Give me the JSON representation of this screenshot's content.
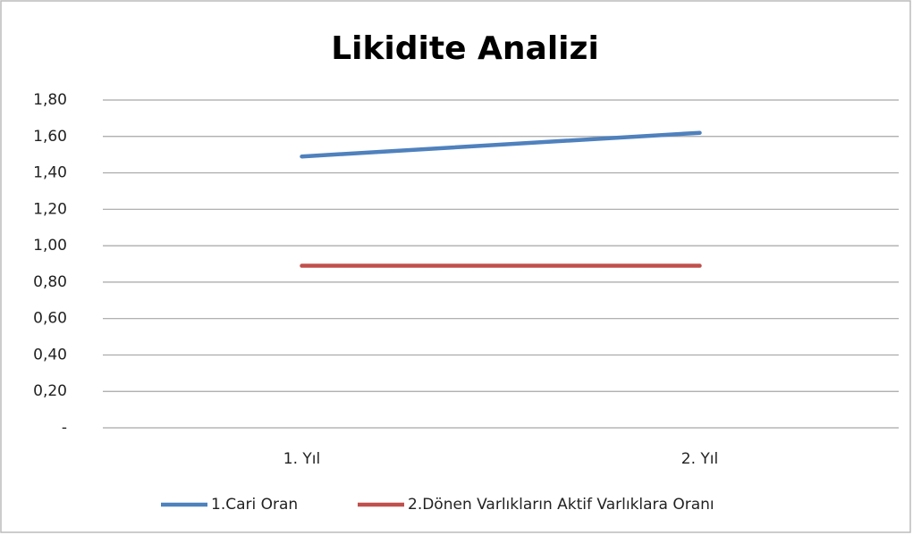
{
  "chart_data": {
    "type": "line",
    "title": "Likidite Analizi",
    "categories": [
      "1. Yıl",
      "2. Yıl"
    ],
    "series": [
      {
        "name": "1.Cari Oran",
        "color": "#4f81bd",
        "values": [
          1.49,
          1.62
        ]
      },
      {
        "name": "2.Dönen Varlıkların Aktif Varlıklara Oranı",
        "color": "#c0504d",
        "values": [
          0.89,
          0.89
        ]
      }
    ],
    "ylim": [
      0,
      1.8
    ],
    "yticks": [
      {
        "value": 0,
        "label": "-"
      },
      {
        "value": 0.2,
        "label": "0,20"
      },
      {
        "value": 0.4,
        "label": "0,40"
      },
      {
        "value": 0.6,
        "label": "0,60"
      },
      {
        "value": 0.8,
        "label": "0,80"
      },
      {
        "value": 1.0,
        "label": "1,00"
      },
      {
        "value": 1.2,
        "label": "1,20"
      },
      {
        "value": 1.4,
        "label": "1,40"
      },
      {
        "value": 1.6,
        "label": "1,60"
      },
      {
        "value": 1.8,
        "label": "1,80"
      }
    ],
    "grid": true,
    "legend": "bottom"
  }
}
